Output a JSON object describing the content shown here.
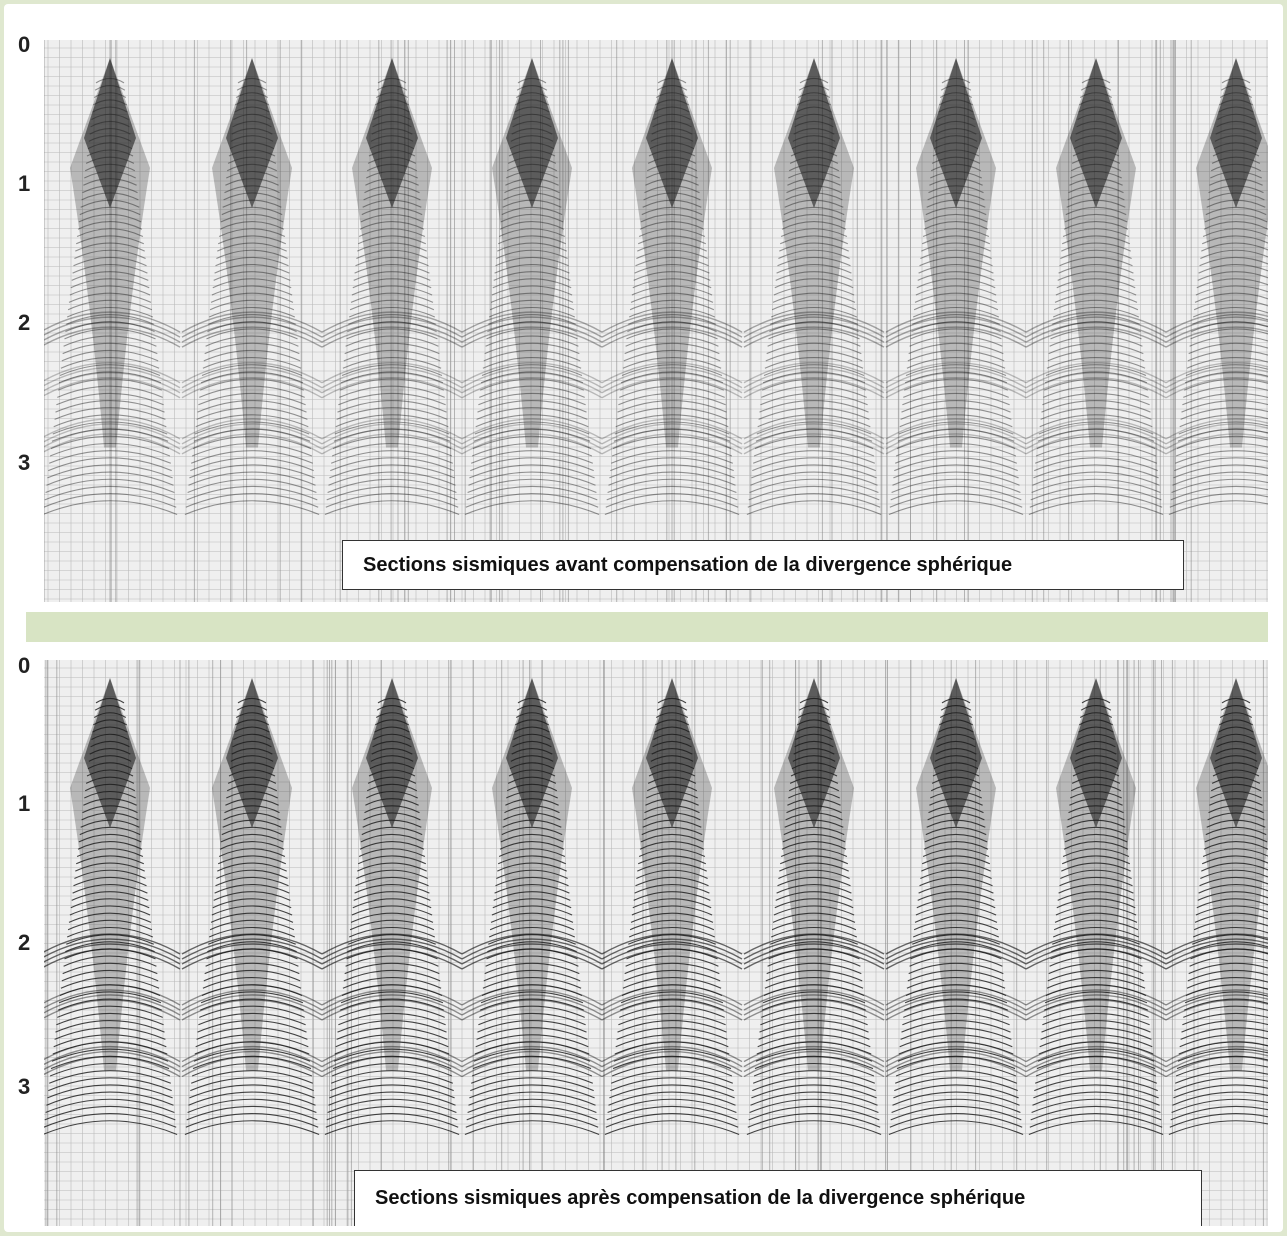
{
  "panels": [
    {
      "id": "top",
      "caption": "Sections sismiques avant compensation de la divergence  sphérique",
      "time_ticks": [
        "0",
        "1",
        "2",
        "3"
      ]
    },
    {
      "id": "bottom",
      "caption": "Sections sismiques après compensation de la divergence  sphérique",
      "time_ticks": [
        "0",
        "1",
        "2",
        "3"
      ]
    }
  ],
  "colors": {
    "background": "#dfe8cf",
    "separator": "#d8e4c4",
    "trace": "#1a1a1a"
  }
}
